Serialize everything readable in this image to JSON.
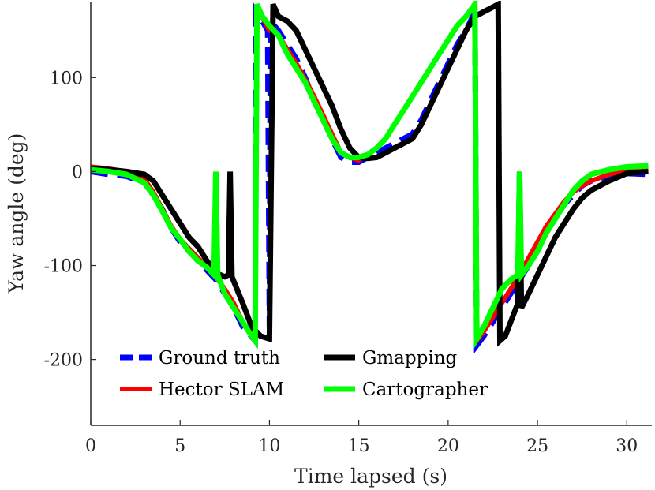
{
  "chart_data": {
    "type": "line",
    "title": "",
    "xlabel": "Time lapsed (s)",
    "ylabel": "Yaw angle (deg)",
    "xlim": [
      0,
      31.4
    ],
    "ylim": [
      -270,
      180
    ],
    "xticks": [
      0,
      5,
      10,
      15,
      20,
      25,
      30
    ],
    "yticks": [
      -200,
      -100,
      0,
      100
    ],
    "ytick_labels": [
      "-200",
      "-100",
      "0",
      "100"
    ],
    "grid": false,
    "legend": {
      "position": "bottom-left",
      "columns": 2
    },
    "series": [
      {
        "name": "Ground truth",
        "color": "#0000ff",
        "style": "dashed",
        "points": [
          [
            0,
            0
          ],
          [
            1,
            -3
          ],
          [
            2,
            -5
          ],
          [
            3,
            -12
          ],
          [
            3.5,
            -25
          ],
          [
            4,
            -40
          ],
          [
            4.5,
            -60
          ],
          [
            5,
            -75
          ],
          [
            5.5,
            -85
          ],
          [
            6,
            -95
          ],
          [
            6.5,
            -105
          ],
          [
            7,
            -115
          ],
          [
            7.5,
            -130
          ],
          [
            8,
            -145
          ],
          [
            8.5,
            -165
          ],
          [
            9.2,
            -180
          ],
          [
            9.25,
            170
          ],
          [
            9.6,
            160
          ],
          [
            9.9,
            150
          ],
          [
            10,
            -165
          ],
          [
            10.05,
            160
          ],
          [
            10.5,
            150
          ],
          [
            11,
            135
          ],
          [
            11.5,
            120
          ],
          [
            12,
            100
          ],
          [
            12.5,
            75
          ],
          [
            13,
            55
          ],
          [
            13.5,
            35
          ],
          [
            14,
            15
          ],
          [
            14.5,
            10
          ],
          [
            15,
            10
          ],
          [
            15.5,
            15
          ],
          [
            16,
            20
          ],
          [
            16.5,
            25
          ],
          [
            17,
            30
          ],
          [
            17.5,
            35
          ],
          [
            18,
            40
          ],
          [
            18.5,
            55
          ],
          [
            19,
            75
          ],
          [
            19.5,
            95
          ],
          [
            20,
            115
          ],
          [
            20.5,
            135
          ],
          [
            21,
            150
          ],
          [
            21.5,
            170
          ],
          [
            21.6,
            -185
          ],
          [
            22,
            -175
          ],
          [
            22.5,
            -160
          ],
          [
            23,
            -145
          ],
          [
            23.5,
            -130
          ],
          [
            24,
            -115
          ],
          [
            24.5,
            -100
          ],
          [
            25,
            -80
          ],
          [
            25.5,
            -65
          ],
          [
            26,
            -50
          ],
          [
            26.5,
            -35
          ],
          [
            27,
            -25
          ],
          [
            27.5,
            -15
          ],
          [
            28,
            -10
          ],
          [
            29,
            -5
          ],
          [
            30,
            -2
          ],
          [
            31.2,
            -3
          ]
        ]
      },
      {
        "name": "Hector SLAM",
        "color": "#ff0000",
        "style": "solid",
        "points": [
          [
            0,
            5
          ],
          [
            1,
            3
          ],
          [
            2,
            0
          ],
          [
            3,
            -8
          ],
          [
            3.5,
            -22
          ],
          [
            4,
            -40
          ],
          [
            4.5,
            -58
          ],
          [
            5,
            -72
          ],
          [
            5.5,
            -82
          ],
          [
            6,
            -92
          ],
          [
            6.5,
            -102
          ],
          [
            7,
            -112
          ],
          [
            7.5,
            -125
          ],
          [
            8,
            -140
          ],
          [
            8.5,
            -160
          ],
          [
            9.2,
            -178
          ],
          [
            9.3,
            175
          ],
          [
            10,
            150
          ],
          [
            10.5,
            145
          ],
          [
            11,
            130
          ],
          [
            11.5,
            115
          ],
          [
            12,
            98
          ],
          [
            12.5,
            80
          ],
          [
            13,
            60
          ],
          [
            13.5,
            40
          ],
          [
            14,
            20
          ],
          [
            14.5,
            15
          ],
          [
            15,
            12
          ],
          [
            15.5,
            18
          ],
          [
            16,
            25
          ],
          [
            16.5,
            35
          ],
          [
            17,
            50
          ],
          [
            17.5,
            65
          ],
          [
            18,
            80
          ],
          [
            18.5,
            95
          ],
          [
            19,
            110
          ],
          [
            19.5,
            125
          ],
          [
            20,
            140
          ],
          [
            20.5,
            155
          ],
          [
            21,
            165
          ],
          [
            21.5,
            175
          ],
          [
            21.6,
            -180
          ],
          [
            22,
            -170
          ],
          [
            22.5,
            -155
          ],
          [
            23,
            -140
          ],
          [
            23.5,
            -125
          ],
          [
            24,
            -110
          ],
          [
            24.5,
            -92
          ],
          [
            25,
            -75
          ],
          [
            25.5,
            -58
          ],
          [
            26,
            -45
          ],
          [
            26.5,
            -32
          ],
          [
            27,
            -22
          ],
          [
            27.5,
            -15
          ],
          [
            28,
            -10
          ],
          [
            29,
            -3
          ],
          [
            30,
            2
          ],
          [
            31.2,
            3
          ]
        ]
      },
      {
        "name": "Gmapping",
        "color": "#000000",
        "style": "solid",
        "points": [
          [
            0,
            3
          ],
          [
            1,
            2
          ],
          [
            2,
            0
          ],
          [
            3,
            -3
          ],
          [
            3.5,
            -10
          ],
          [
            4,
            -25
          ],
          [
            4.5,
            -40
          ],
          [
            5,
            -55
          ],
          [
            5.5,
            -70
          ],
          [
            6,
            -80
          ],
          [
            6.5,
            -95
          ],
          [
            7,
            -108
          ],
          [
            7.5,
            -112
          ],
          [
            7.7,
            -110
          ],
          [
            7.8,
            0
          ],
          [
            7.9,
            -112
          ],
          [
            8.5,
            -140
          ],
          [
            9,
            -165
          ],
          [
            9.5,
            -175
          ],
          [
            10,
            -178
          ],
          [
            10.2,
            178
          ],
          [
            10.5,
            165
          ],
          [
            11,
            160
          ],
          [
            11.5,
            150
          ],
          [
            12,
            130
          ],
          [
            12.5,
            110
          ],
          [
            13,
            90
          ],
          [
            13.5,
            70
          ],
          [
            14,
            45
          ],
          [
            14.5,
            25
          ],
          [
            15,
            15
          ],
          [
            15.5,
            14
          ],
          [
            16,
            15
          ],
          [
            16.5,
            20
          ],
          [
            17,
            25
          ],
          [
            17.5,
            30
          ],
          [
            18,
            35
          ],
          [
            18.5,
            50
          ],
          [
            19,
            70
          ],
          [
            19.5,
            90
          ],
          [
            20,
            110
          ],
          [
            20.5,
            130
          ],
          [
            21,
            150
          ],
          [
            21.5,
            165
          ],
          [
            22,
            170
          ],
          [
            22.5,
            175
          ],
          [
            22.8,
            178
          ],
          [
            22.9,
            -180
          ],
          [
            23.2,
            -175
          ],
          [
            23.5,
            -160
          ],
          [
            23.9,
            -140
          ],
          [
            24,
            0
          ],
          [
            24.1,
            -145
          ],
          [
            24.5,
            -130
          ],
          [
            25,
            -110
          ],
          [
            25.5,
            -90
          ],
          [
            26,
            -70
          ],
          [
            26.5,
            -55
          ],
          [
            27,
            -40
          ],
          [
            27.5,
            -28
          ],
          [
            28,
            -20
          ],
          [
            29,
            -10
          ],
          [
            30,
            -2
          ],
          [
            31.2,
            0
          ]
        ]
      },
      {
        "name": "Cartographer",
        "color": "#00ff00",
        "style": "solid",
        "points": [
          [
            0,
            2
          ],
          [
            1,
            0
          ],
          [
            2,
            -3
          ],
          [
            3,
            -12
          ],
          [
            3.5,
            -25
          ],
          [
            4,
            -42
          ],
          [
            4.5,
            -60
          ],
          [
            5,
            -72
          ],
          [
            5.5,
            -85
          ],
          [
            6,
            -95
          ],
          [
            6.5,
            -102
          ],
          [
            6.9,
            -110
          ],
          [
            7,
            0
          ],
          [
            7.1,
            -110
          ],
          [
            7.5,
            -130
          ],
          [
            8,
            -145
          ],
          [
            8.5,
            -160
          ],
          [
            9,
            -175
          ],
          [
            9.2,
            -180
          ],
          [
            9.3,
            178
          ],
          [
            9.6,
            165
          ],
          [
            10,
            155
          ],
          [
            10.5,
            145
          ],
          [
            11,
            125
          ],
          [
            11.5,
            110
          ],
          [
            12,
            95
          ],
          [
            12.5,
            75
          ],
          [
            13,
            55
          ],
          [
            13.5,
            35
          ],
          [
            14,
            20
          ],
          [
            14.5,
            15
          ],
          [
            15,
            15
          ],
          [
            15.5,
            18
          ],
          [
            16,
            25
          ],
          [
            16.5,
            35
          ],
          [
            17,
            50
          ],
          [
            17.5,
            65
          ],
          [
            18,
            80
          ],
          [
            18.5,
            95
          ],
          [
            19,
            110
          ],
          [
            19.5,
            125
          ],
          [
            20,
            140
          ],
          [
            20.5,
            155
          ],
          [
            21,
            165
          ],
          [
            21.5,
            178
          ],
          [
            21.6,
            -178
          ],
          [
            22,
            -165
          ],
          [
            22.5,
            -145
          ],
          [
            23,
            -125
          ],
          [
            23.5,
            -115
          ],
          [
            23.9,
            -110
          ],
          [
            24,
            0
          ],
          [
            24.1,
            -110
          ],
          [
            24.5,
            -100
          ],
          [
            25,
            -85
          ],
          [
            25.5,
            -65
          ],
          [
            26,
            -50
          ],
          [
            26.5,
            -35
          ],
          [
            27,
            -20
          ],
          [
            27.5,
            -10
          ],
          [
            28,
            -3
          ],
          [
            29,
            2
          ],
          [
            30,
            5
          ],
          [
            31.2,
            6
          ]
        ]
      }
    ]
  }
}
